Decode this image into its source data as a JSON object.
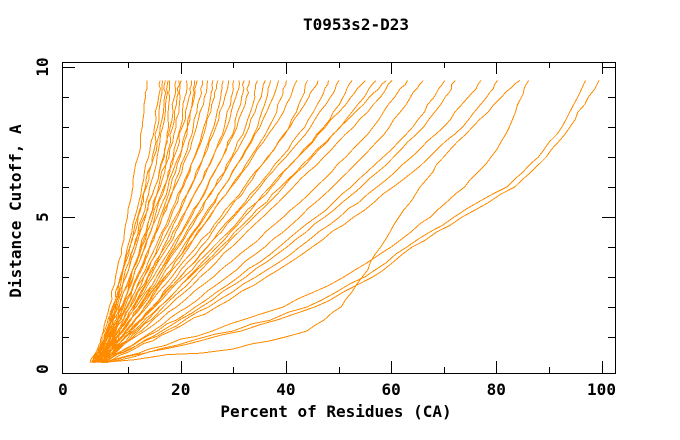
{
  "title": "T0953s2-D23",
  "axes": {
    "xlabel": "Percent of Residues (CA)",
    "ylabel": "Distance Cutoff, A",
    "x_tick_labels": [
      "0",
      "20",
      "40",
      "60",
      "80",
      "100"
    ],
    "y_tick_labels": [
      "0",
      "5",
      "10"
    ]
  },
  "chart_data": {
    "type": "line",
    "title": "T0953s2-D23",
    "xlabel": "Percent of Residues (CA)",
    "ylabel": "Distance Cutoff, A",
    "xlim": [
      0,
      100
    ],
    "ylim": [
      0,
      10
    ],
    "x_ticks_major": [
      0,
      20,
      40,
      60,
      80,
      100
    ],
    "x_ticks_minor": [
      10,
      30,
      50,
      70,
      90
    ],
    "y_ticks_major": [
      0,
      5,
      10
    ],
    "y_ticks_minor": [
      1,
      2,
      3,
      4,
      6,
      7,
      8,
      9
    ],
    "grid": false,
    "legend": false,
    "frame": "full-box-inward-ticks",
    "background": "#ffffff",
    "line_color": "#ff8c00",
    "axis_color": "#000000",
    "cutoff_levels": [
      0.15,
      0.6,
      1.2,
      2.0,
      3.0,
      4.0,
      5.0,
      6.0,
      7.0,
      8.0,
      9.0,
      9.55
    ],
    "curves": [
      [
        3.2,
        4.4,
        5.3,
        6.4,
        7.6,
        8.8,
        9.9,
        10.9,
        11.9,
        12.7,
        13.3,
        13.6
      ],
      [
        3.5,
        4.7,
        5.8,
        7.1,
        8.5,
        9.9,
        11.3,
        12.6,
        13.9,
        15.0,
        15.8,
        16.1
      ],
      [
        4.0,
        5.0,
        6.1,
        7.3,
        8.8,
        10.4,
        11.9,
        13.3,
        14.6,
        15.6,
        16.3,
        16.6
      ],
      [
        2.8,
        4.2,
        5.5,
        7.0,
        8.7,
        10.3,
        11.8,
        13.5,
        14.9,
        16.1,
        16.9,
        17.1
      ],
      [
        4.2,
        5.3,
        6.4,
        7.9,
        9.5,
        11.1,
        12.7,
        14.1,
        15.5,
        16.6,
        17.3,
        17.6
      ],
      [
        3.8,
        4.9,
        6.0,
        7.5,
        9.2,
        11.1,
        13.1,
        15.1,
        16.9,
        17.7,
        17.9,
        17.9
      ],
      [
        3.0,
        4.5,
        5.9,
        7.7,
        9.6,
        11.5,
        13.3,
        15.1,
        16.7,
        18.0,
        18.8,
        19.1
      ],
      [
        4.5,
        5.9,
        7.3,
        8.9,
        10.6,
        12.4,
        14.1,
        15.8,
        17.3,
        18.5,
        19.3,
        19.6
      ],
      [
        3.3,
        4.8,
        6.4,
        8.3,
        10.3,
        12.3,
        14.2,
        16.1,
        17.8,
        19.1,
        19.9,
        20.1
      ],
      [
        4.1,
        5.6,
        7.1,
        8.9,
        11.0,
        13.1,
        15.1,
        17.0,
        18.6,
        20.0,
        20.8,
        21.1
      ],
      [
        3.1,
        4.6,
        6.2,
        8.2,
        10.4,
        12.6,
        14.7,
        16.8,
        18.7,
        20.3,
        21.6,
        22.1
      ],
      [
        4.4,
        5.9,
        7.7,
        9.7,
        11.9,
        14.1,
        16.1,
        18.1,
        19.9,
        21.3,
        22.3,
        22.6
      ],
      [
        3.6,
        5.1,
        6.7,
        8.7,
        11.0,
        13.3,
        15.5,
        17.6,
        19.6,
        21.3,
        22.6,
        23.1
      ],
      [
        3.9,
        5.5,
        7.3,
        9.4,
        11.8,
        14.2,
        16.5,
        18.7,
        20.7,
        22.4,
        23.7,
        24.1
      ],
      [
        3.4,
        5.0,
        6.9,
        9.1,
        11.6,
        14.1,
        16.5,
        18.9,
        21.1,
        23.0,
        24.5,
        25.1
      ],
      [
        4.3,
        6.0,
        8.0,
        10.3,
        13.0,
        15.6,
        18.1,
        20.5,
        22.6,
        24.4,
        25.7,
        26.1
      ],
      [
        3.7,
        5.4,
        7.4,
        9.8,
        12.5,
        15.2,
        17.8,
        20.3,
        22.7,
        24.8,
        26.4,
        27.1
      ],
      [
        4.6,
        6.3,
        8.4,
        10.9,
        13.8,
        16.7,
        19.4,
        22.0,
        24.3,
        26.3,
        27.6,
        28.1
      ],
      [
        3.2,
        5.0,
        7.2,
        9.9,
        13.0,
        16.0,
        19.0,
        21.8,
        24.4,
        26.7,
        28.4,
        29.1
      ],
      [
        4.0,
        5.9,
        8.2,
        11.0,
        14.3,
        17.5,
        20.5,
        23.4,
        26.1,
        28.3,
        29.6,
        30.1
      ],
      [
        3.3,
        5.2,
        7.5,
        10.4,
        13.7,
        17.0,
        20.2,
        23.3,
        26.2,
        28.8,
        30.5,
        31.1
      ],
      [
        4.7,
        6.7,
        9.1,
        12.0,
        15.4,
        18.8,
        22.0,
        25.1,
        28.0,
        30.3,
        31.6,
        32.1
      ],
      [
        3.8,
        5.7,
        8.2,
        11.2,
        14.8,
        18.3,
        21.7,
        25.0,
        28.0,
        30.7,
        32.5,
        33.1
      ],
      [
        4.2,
        6.3,
        8.9,
        12.1,
        15.9,
        19.6,
        23.1,
        26.5,
        29.7,
        32.3,
        34.1,
        34.6
      ],
      [
        3.5,
        5.6,
        8.2,
        11.5,
        15.4,
        19.2,
        22.9,
        26.5,
        29.9,
        33.0,
        35.3,
        36.1
      ],
      [
        4.8,
        7.0,
        9.7,
        13.1,
        17.0,
        20.9,
        24.6,
        28.2,
        31.6,
        34.6,
        36.4,
        37.1
      ],
      [
        3.9,
        6.1,
        8.8,
        12.3,
        16.4,
        20.4,
        24.3,
        28.1,
        31.8,
        35.1,
        37.6,
        38.6
      ],
      [
        4.4,
        6.7,
        9.6,
        13.2,
        17.4,
        21.6,
        25.6,
        29.5,
        33.3,
        36.8,
        39.2,
        40.1
      ],
      [
        3.6,
        6.0,
        8.8,
        12.5,
        16.9,
        21.2,
        25.4,
        29.6,
        33.7,
        37.7,
        40.9,
        42.1
      ],
      [
        4.9,
        7.4,
        10.6,
        14.6,
        19.2,
        23.8,
        28.2,
        32.5,
        36.7,
        40.6,
        43.1,
        44.1
      ],
      [
        3.8,
        6.3,
        9.5,
        13.6,
        18.3,
        23.0,
        27.6,
        32.1,
        36.5,
        40.8,
        44.4,
        46.1
      ],
      [
        4.5,
        7.2,
        10.6,
        14.9,
        20.0,
        25.0,
        29.8,
        34.6,
        39.2,
        43.6,
        46.8,
        48.1
      ],
      [
        4.0,
        6.7,
        10.2,
        14.6,
        19.9,
        25.1,
        30.1,
        35.1,
        40.0,
        44.7,
        48.5,
        50.1
      ],
      [
        4.8,
        7.7,
        11.4,
        16.0,
        21.5,
        26.9,
        32.1,
        37.3,
        42.3,
        47.2,
        50.9,
        52.6
      ],
      [
        3.7,
        6.6,
        10.3,
        15.0,
        20.6,
        26.2,
        31.6,
        37.0,
        42.3,
        47.5,
        52.4,
        55.1
      ],
      [
        5.0,
        8.0,
        11.9,
        16.7,
        22.6,
        28.3,
        33.9,
        39.5,
        45.0,
        50.4,
        54.9,
        57.1
      ],
      [
        4.1,
        7.1,
        11.0,
        15.9,
        21.8,
        27.6,
        33.3,
        39.0,
        44.7,
        50.3,
        55.9,
        59.1
      ],
      [
        5.2,
        8.4,
        12.5,
        17.6,
        23.7,
        29.7,
        35.6,
        41.4,
        47.2,
        52.9,
        58.0,
        60.2
      ],
      [
        4.2,
        8.2,
        13.2,
        19.2,
        26.2,
        33.0,
        39.5,
        45.7,
        51.4,
        56.6,
        60.7,
        63.1
      ],
      [
        5.3,
        9.3,
        14.8,
        21.3,
        28.8,
        36.0,
        42.7,
        48.9,
        54.6,
        59.7,
        63.7,
        66.1
      ],
      [
        4.4,
        9.6,
        15.6,
        22.8,
        31.0,
        38.7,
        45.8,
        52.4,
        58.5,
        64.1,
        68.2,
        70.2
      ],
      [
        5.5,
        10.2,
        16.4,
        23.9,
        32.4,
        40.2,
        47.4,
        54.3,
        60.5,
        66.2,
        70.3,
        72.2
      ],
      [
        4.6,
        10.6,
        17.2,
        25.3,
        34.3,
        42.6,
        50.2,
        57.3,
        63.9,
        70.0,
        74.7,
        77.1
      ],
      [
        5.7,
        11.2,
        18.2,
        26.8,
        36.3,
        45.0,
        52.9,
        60.4,
        67.3,
        73.6,
        78.2,
        80.2
      ],
      [
        5.0,
        30.0,
        44.0,
        50.5,
        54.5,
        58.0,
        61.5,
        65.5,
        70.0,
        75.5,
        81.0,
        84.5
      ],
      [
        5.8,
        14.0,
        26.0,
        39.5,
        51.0,
        60.0,
        67.5,
        74.0,
        79.0,
        82.5,
        84.8,
        86.2
      ],
      [
        4.9,
        16.0,
        30.0,
        44.0,
        55.0,
        63.0,
        72.0,
        82.0,
        88.0,
        92.5,
        95.5,
        97.0
      ],
      [
        5.9,
        17.0,
        31.5,
        45.5,
        56.5,
        64.0,
        73.5,
        83.5,
        89.5,
        94.0,
        97.5,
        99.5
      ]
    ]
  }
}
